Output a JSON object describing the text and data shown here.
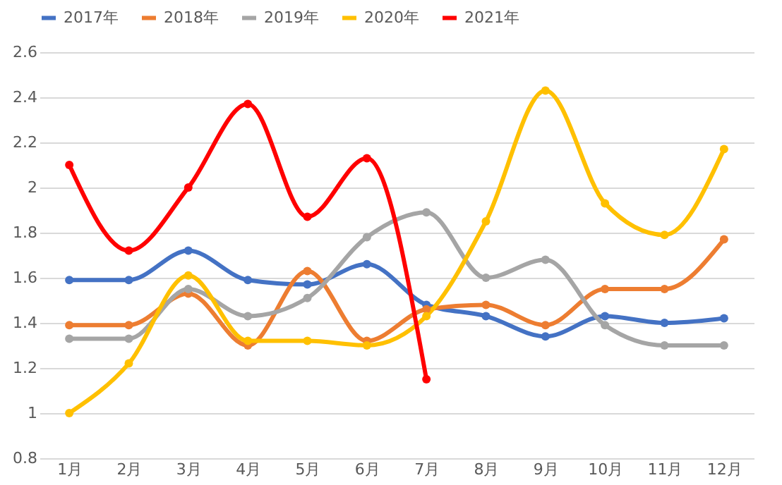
{
  "chart_data": {
    "type": "line",
    "categories": [
      "1月",
      "2月",
      "3月",
      "4月",
      "5月",
      "6月",
      "7月",
      "8月",
      "9月",
      "10月",
      "11月",
      "12月"
    ],
    "series": [
      {
        "name": "2017年",
        "color": "#4472c4",
        "values": [
          1.59,
          1.59,
          1.72,
          1.59,
          1.57,
          1.66,
          1.48,
          1.43,
          1.34,
          1.43,
          1.4,
          1.42
        ]
      },
      {
        "name": "2018年",
        "color": "#ed7d31",
        "values": [
          1.39,
          1.39,
          1.53,
          1.3,
          1.63,
          1.32,
          1.46,
          1.48,
          1.39,
          1.55,
          1.55,
          1.77
        ]
      },
      {
        "name": "2019年",
        "color": "#a5a5a5",
        "values": [
          1.33,
          1.33,
          1.55,
          1.43,
          1.51,
          1.78,
          1.89,
          1.6,
          1.68,
          1.39,
          1.3,
          1.3
        ]
      },
      {
        "name": "2020年",
        "color": "#ffc000",
        "values": [
          1.0,
          1.22,
          1.61,
          1.32,
          1.32,
          1.3,
          1.43,
          1.85,
          2.43,
          1.93,
          1.79,
          2.17
        ]
      },
      {
        "name": "2021年",
        "color": "#ff0000",
        "values": [
          2.1,
          1.72,
          2.0,
          2.37,
          1.87,
          2.13,
          1.15,
          null,
          null,
          null,
          null,
          null
        ]
      }
    ],
    "ylim": [
      0.8,
      2.6
    ],
    "yticks": [
      0.8,
      1,
      1.2,
      1.4,
      1.6,
      1.8,
      2,
      2.2,
      2.4,
      2.6
    ],
    "grid": "y",
    "legend": "top",
    "marker": "circle",
    "line_style": "solid"
  }
}
